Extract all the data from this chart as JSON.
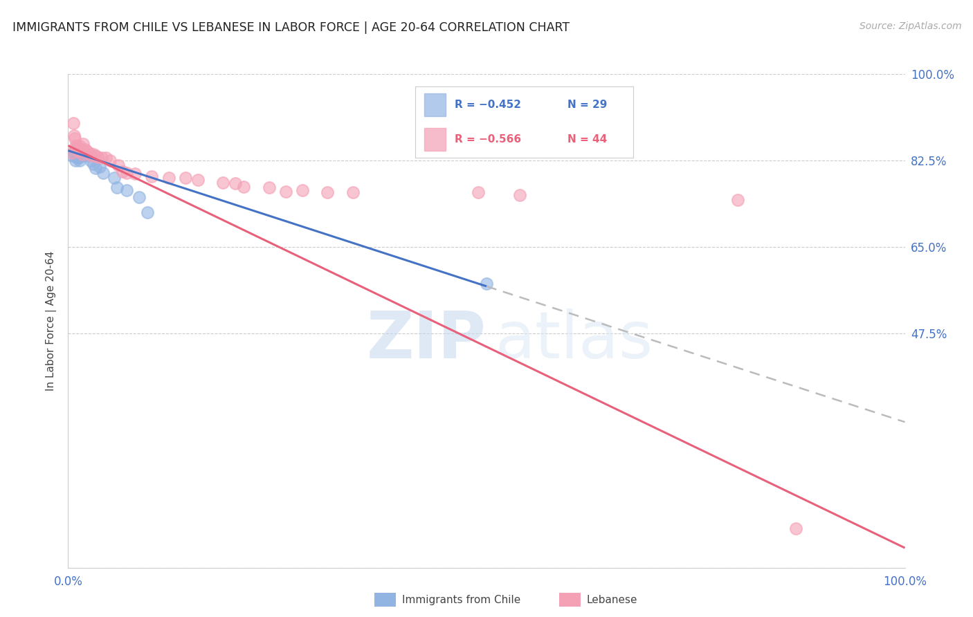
{
  "title": "IMMIGRANTS FROM CHILE VS LEBANESE IN LABOR FORCE | AGE 20-64 CORRELATION CHART",
  "source": "Source: ZipAtlas.com",
  "ylabel": "In Labor Force | Age 20-64",
  "xlim": [
    0.0,
    1.0
  ],
  "ylim": [
    0.0,
    1.0
  ],
  "chile_color": "#92b4e3",
  "chile_line_color": "#4472c4",
  "lebanese_color": "#f4a0b5",
  "lebanese_line_color": "#e8607a",
  "dashed_color": "#bbbbbb",
  "watermark_color": "#d8e8f5",
  "grid_color": "#cccccc",
  "tick_color": "#4472c4",
  "title_color": "#222222",
  "ylabel_color": "#444444",
  "source_color": "#aaaaaa",
  "legend_border_color": "#cccccc",
  "chile_scatter_x": [
    0.005,
    0.007,
    0.008,
    0.009,
    0.01,
    0.01,
    0.011,
    0.012,
    0.012,
    0.013,
    0.013,
    0.014,
    0.015,
    0.016,
    0.018,
    0.02,
    0.022,
    0.025,
    0.027,
    0.03,
    0.033,
    0.038,
    0.042,
    0.055,
    0.058,
    0.07,
    0.085,
    0.095,
    0.5
  ],
  "chile_scatter_y": [
    0.835,
    0.84,
    0.845,
    0.825,
    0.83,
    0.85,
    0.838,
    0.832,
    0.842,
    0.838,
    0.83,
    0.825,
    0.838,
    0.835,
    0.845,
    0.838,
    0.835,
    0.836,
    0.825,
    0.818,
    0.81,
    0.812,
    0.8,
    0.79,
    0.77,
    0.765,
    0.75,
    0.72,
    0.575
  ],
  "lebanese_scatter_x": [
    0.005,
    0.006,
    0.007,
    0.008,
    0.009,
    0.01,
    0.011,
    0.012,
    0.013,
    0.014,
    0.015,
    0.016,
    0.017,
    0.018,
    0.02,
    0.022,
    0.025,
    0.028,
    0.03,
    0.033,
    0.035,
    0.04,
    0.045,
    0.05,
    0.06,
    0.065,
    0.07,
    0.08,
    0.1,
    0.12,
    0.14,
    0.155,
    0.185,
    0.2,
    0.21,
    0.24,
    0.26,
    0.28,
    0.31,
    0.34,
    0.49,
    0.54,
    0.8,
    0.87
  ],
  "lebanese_scatter_y": [
    0.84,
    0.9,
    0.875,
    0.87,
    0.855,
    0.855,
    0.85,
    0.845,
    0.845,
    0.855,
    0.848,
    0.845,
    0.838,
    0.858,
    0.848,
    0.845,
    0.84,
    0.835,
    0.838,
    0.835,
    0.832,
    0.83,
    0.83,
    0.825,
    0.815,
    0.802,
    0.8,
    0.798,
    0.792,
    0.79,
    0.79,
    0.785,
    0.78,
    0.778,
    0.772,
    0.77,
    0.762,
    0.765,
    0.76,
    0.76,
    0.76,
    0.755,
    0.745,
    0.08
  ],
  "chile_line_x0": 0.0,
  "chile_line_x1": 0.5,
  "chile_line_y0": 0.845,
  "chile_line_y1": 0.57,
  "leb_line_x0": 0.0,
  "leb_line_x1": 1.0,
  "leb_line_y0": 0.855,
  "leb_line_y1": 0.04,
  "dashed_line_x0": 0.5,
  "dashed_line_x1": 1.0,
  "dashed_line_y0": 0.57,
  "dashed_line_y1": 0.295,
  "ytick_positions": [
    0.0,
    0.475,
    0.65,
    0.825,
    1.0
  ],
  "ytick_labels_right": [
    "",
    "47.5%",
    "65.0%",
    "82.5%",
    "100.0%"
  ],
  "xtick_positions": [
    0.0,
    0.25,
    0.5,
    0.75,
    1.0
  ],
  "xtick_labels": [
    "0.0%",
    "",
    "",
    "",
    "100.0%"
  ],
  "legend_R1": "R = −0.452",
  "legend_N1": "N = 29",
  "legend_R2": "R = −0.566",
  "legend_N2": "N = 44",
  "bottom_legend_chile": "Immigrants from Chile",
  "bottom_legend_leb": "Lebanese"
}
